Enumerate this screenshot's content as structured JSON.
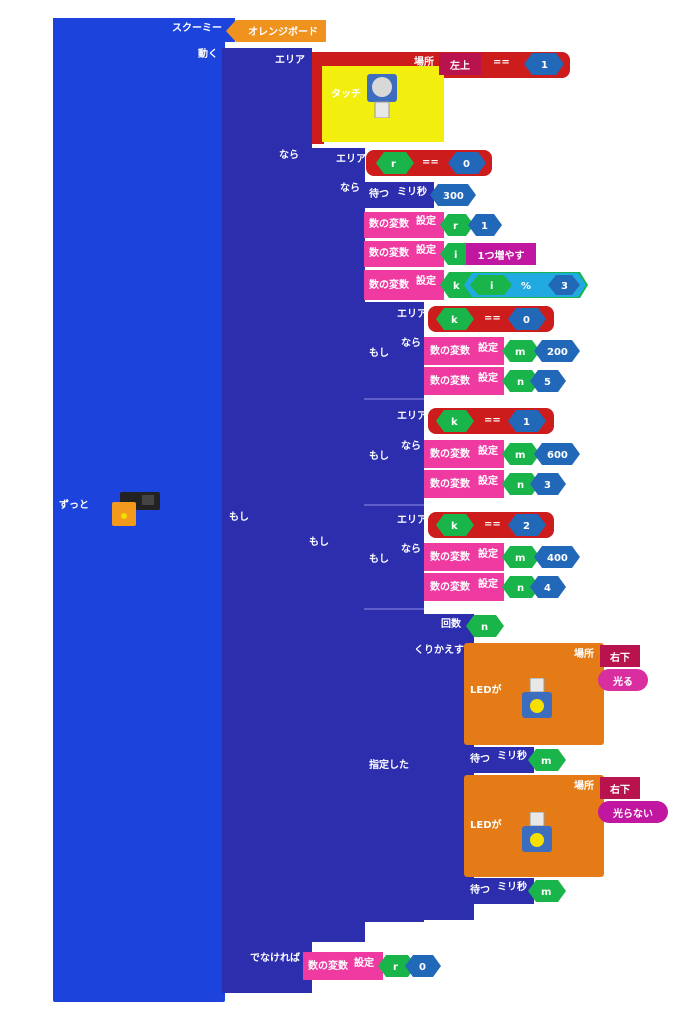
{
  "header": {
    "label": "スクーミー",
    "board": "オレンジボード"
  },
  "loop": {
    "label": "ずっと"
  },
  "move": {
    "label": "動く"
  },
  "if_outer": {
    "label": "もし",
    "area": "エリア",
    "then": "なら",
    "else": "でなければ"
  },
  "touch_cond": {
    "place_label": "場所",
    "place_value": "左上",
    "op": "==",
    "value": "1",
    "sensor": "タッチ"
  },
  "if_mid": {
    "label": "もし",
    "area": "エリア",
    "then": "なら",
    "var": "r",
    "op": "==",
    "value": "0"
  },
  "wait1": {
    "label": "待つ",
    "unit": "ミリ秒",
    "value": "300"
  },
  "setvars": [
    {
      "label": "数の変数",
      "set": "設定",
      "var": "r",
      "value": "1"
    },
    {
      "label": "数の変数",
      "set": "設定",
      "var": "i",
      "value": "1つ増やす"
    },
    {
      "label": "数の変数",
      "set": "設定",
      "var": "k",
      "left": "i",
      "op": "%",
      "right": "3"
    }
  ],
  "branches": [
    {
      "label": "もし",
      "area": "エリア",
      "then": "なら",
      "var": "k",
      "op": "==",
      "value": "0",
      "sets": [
        {
          "label": "数の変数",
          "set": "設定",
          "var": "m",
          "value": "200"
        },
        {
          "label": "数の変数",
          "set": "設定",
          "var": "n",
          "value": "5"
        }
      ]
    },
    {
      "label": "もし",
      "area": "エリア",
      "then": "なら",
      "var": "k",
      "op": "==",
      "value": "1",
      "sets": [
        {
          "label": "数の変数",
          "set": "設定",
          "var": "m",
          "value": "600"
        },
        {
          "label": "数の変数",
          "set": "設定",
          "var": "n",
          "value": "3"
        }
      ]
    },
    {
      "label": "もし",
      "area": "エリア",
      "then": "なら",
      "var": "k",
      "op": "==",
      "value": "2",
      "sets": [
        {
          "label": "数の変数",
          "set": "設定",
          "var": "m",
          "value": "400"
        },
        {
          "label": "数の変数",
          "set": "設定",
          "var": "n",
          "value": "4"
        }
      ]
    }
  ],
  "repeat": {
    "label": "指定した",
    "count_label": "回数",
    "count_var": "n",
    "repeat_label": "くりかえす"
  },
  "led_on": {
    "label": "LEDが",
    "place_label": "場所",
    "place_value": "右下",
    "action": "光る"
  },
  "wait2": {
    "label": "待つ",
    "unit": "ミリ秒",
    "value": "m"
  },
  "led_off": {
    "label": "LEDが",
    "place_label": "場所",
    "place_value": "右下",
    "action": "光らない"
  },
  "wait3": {
    "label": "待つ",
    "unit": "ミリ秒",
    "value": "m"
  },
  "else_set": {
    "label": "数の変数",
    "set": "設定",
    "var": "r",
    "value": "0"
  },
  "colors": {
    "loop": "#1c44dd",
    "control": "#2c2eae",
    "condition": "#cc1c1c",
    "variable": "#ee3aa1",
    "led": "#e47b17",
    "number": "#2268b8",
    "var_green": "#1ab54a",
    "touch": "#f2ee0e",
    "place_tab": "#b8134f",
    "action": "#d92ea0",
    "mod_blue": "#21a9e1"
  }
}
